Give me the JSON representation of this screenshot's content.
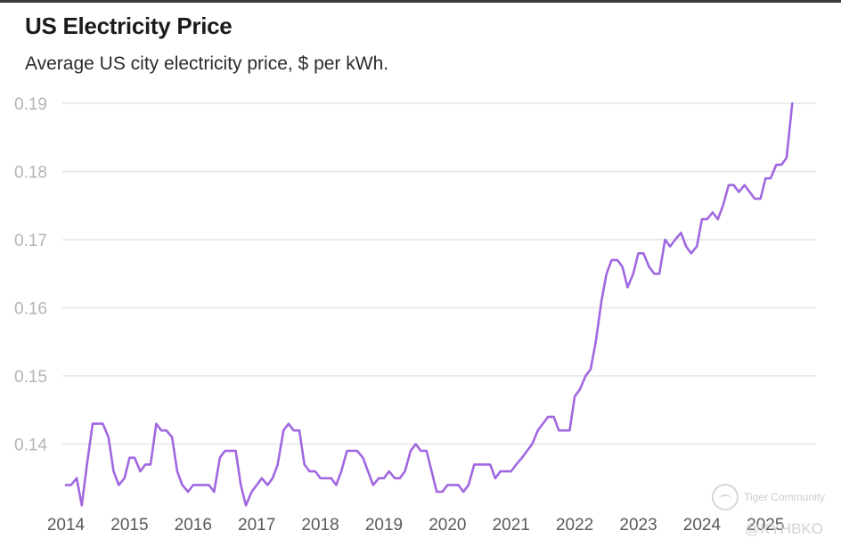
{
  "header": {
    "title": "US Electricity Price",
    "subtitle": "Average US city electricity price, $ per kWh."
  },
  "watermark": {
    "brand": "Tiger Community",
    "handle": "@KYHBKO",
    "icon": "tiger-community-logo-icon"
  },
  "colors": {
    "line": "#a167e0",
    "grid": "#e6e6e6",
    "y_tick_text": "#b4b4b4",
    "x_tick_text": "#5a5a5a"
  },
  "chart_data": {
    "type": "line",
    "title": "US Electricity Price",
    "subtitle": "Average US city electricity price, $ per kWh.",
    "xlabel": "",
    "ylabel": "",
    "x_ticks": [
      "2014",
      "2015",
      "2016",
      "2017",
      "2018",
      "2019",
      "2020",
      "2021",
      "2022",
      "2023",
      "2024",
      "2025"
    ],
    "y_ticks": [
      0.14,
      0.15,
      0.16,
      0.17,
      0.18,
      0.19
    ],
    "y_tick_labels": [
      "0.14",
      "0.15",
      "0.16",
      "0.17",
      "0.18",
      "0.19"
    ],
    "xlim": [
      2014.0,
      2025.5
    ],
    "ylim": [
      0.1325,
      0.19
    ],
    "grid": true,
    "legend": "none",
    "series": [
      {
        "x": [
          2014.0,
          2014.08,
          2014.17,
          2014.25,
          2014.33,
          2014.42,
          2014.5,
          2014.58,
          2014.67,
          2014.75,
          2014.83,
          2014.92,
          2015.0,
          2015.08,
          2015.17,
          2015.25,
          2015.33,
          2015.42,
          2015.5,
          2015.58,
          2015.67,
          2015.75,
          2015.83,
          2015.92,
          2016.0,
          2016.08,
          2016.17,
          2016.25,
          2016.33,
          2016.42,
          2016.5,
          2016.58,
          2016.67,
          2016.75,
          2016.83,
          2016.92,
          2017.0,
          2017.08,
          2017.17,
          2017.25,
          2017.33,
          2017.42,
          2017.5,
          2017.58,
          2017.67,
          2017.75,
          2017.83,
          2017.92,
          2018.0,
          2018.08,
          2018.17,
          2018.25,
          2018.33,
          2018.42,
          2018.5,
          2018.58,
          2018.67,
          2018.75,
          2018.83,
          2018.92,
          2019.0,
          2019.08,
          2019.17,
          2019.25,
          2019.33,
          2019.42,
          2019.5,
          2019.58,
          2019.67,
          2019.75,
          2019.83,
          2019.92,
          2020.0,
          2020.08,
          2020.17,
          2020.25,
          2020.33,
          2020.42,
          2020.5,
          2020.58,
          2020.67,
          2020.75,
          2020.83,
          2020.92,
          2021.0,
          2021.08,
          2021.17,
          2021.25,
          2021.33,
          2021.42,
          2021.5,
          2021.58,
          2021.67,
          2021.75,
          2021.83,
          2021.92,
          2022.0,
          2022.08,
          2022.17,
          2022.25,
          2022.33,
          2022.42,
          2022.5,
          2022.58,
          2022.67,
          2022.75,
          2022.83,
          2022.92,
          2023.0,
          2023.08,
          2023.17,
          2023.25,
          2023.33,
          2023.42,
          2023.5,
          2023.58,
          2023.67,
          2023.75,
          2023.83,
          2023.92,
          2024.0,
          2024.08,
          2024.17,
          2024.25,
          2024.33,
          2024.42,
          2024.5,
          2024.58,
          2024.67,
          2024.75,
          2024.83,
          2024.92,
          2025.0,
          2025.08,
          2025.17,
          2025.25,
          2025.33,
          2025.42
        ],
        "values": [
          0.134,
          0.134,
          0.135,
          0.131,
          0.137,
          0.143,
          0.143,
          0.143,
          0.141,
          0.136,
          0.134,
          0.135,
          0.138,
          0.138,
          0.136,
          0.137,
          0.137,
          0.143,
          0.142,
          0.142,
          0.141,
          0.136,
          0.134,
          0.133,
          0.134,
          0.134,
          0.134,
          0.134,
          0.133,
          0.138,
          0.139,
          0.139,
          0.139,
          0.134,
          0.131,
          0.133,
          0.134,
          0.135,
          0.134,
          0.135,
          0.137,
          0.142,
          0.143,
          0.142,
          0.142,
          0.137,
          0.136,
          0.136,
          0.135,
          0.135,
          0.135,
          0.134,
          0.136,
          0.139,
          0.139,
          0.139,
          0.138,
          0.136,
          0.134,
          0.135,
          0.135,
          0.136,
          0.135,
          0.135,
          0.136,
          0.139,
          0.14,
          0.139,
          0.139,
          0.136,
          0.133,
          0.133,
          0.134,
          0.134,
          0.134,
          0.133,
          0.134,
          0.137,
          0.137,
          0.137,
          0.137,
          0.135,
          0.136,
          0.136,
          0.136,
          0.137,
          0.138,
          0.139,
          0.14,
          0.142,
          0.143,
          0.144,
          0.144,
          0.142,
          0.142,
          0.142,
          0.147,
          0.148,
          0.15,
          0.151,
          0.155,
          0.161,
          0.165,
          0.167,
          0.167,
          0.166,
          0.163,
          0.165,
          0.168,
          0.168,
          0.166,
          0.165,
          0.165,
          0.17,
          0.169,
          0.17,
          0.171,
          0.169,
          0.168,
          0.169,
          0.173,
          0.173,
          0.174,
          0.173,
          0.175,
          0.178,
          0.178,
          0.177,
          0.178,
          0.177,
          0.176,
          0.176,
          0.179,
          0.179,
          0.181,
          0.181,
          0.182,
          0.19
        ]
      }
    ]
  }
}
